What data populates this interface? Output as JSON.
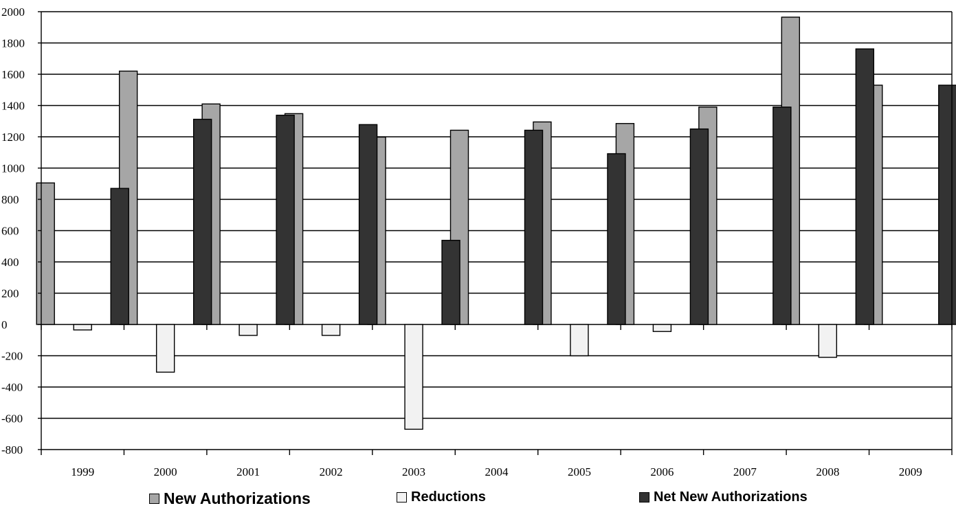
{
  "chart_data": {
    "type": "bar",
    "categories": [
      "1999",
      "2000",
      "2001",
      "2002",
      "2003",
      "2004",
      "2005",
      "2006",
      "2007",
      "2008",
      "2009"
    ],
    "series": [
      {
        "name": "New Authorizations",
        "color": "#a6a6a6",
        "values": [
          905,
          1620,
          1410,
          1348,
          1198,
          1242,
          1295,
          1285,
          1390,
          1965,
          1530
        ]
      },
      {
        "name": "Reductions",
        "color": "#f2f2f2",
        "values": [
          -35,
          -305,
          -70,
          -70,
          -670,
          0,
          -200,
          -45,
          0,
          -210,
          0
        ]
      },
      {
        "name": "Net New Authorizations",
        "color": "#333333",
        "values": [
          870,
          1312,
          1338,
          1278,
          538,
          1242,
          1092,
          1250,
          1390,
          1762,
          1530
        ]
      }
    ],
    "ylim": [
      -800,
      2000
    ],
    "yticks": [
      "-800",
      "-600",
      "-400",
      "-200",
      "0",
      "200",
      "400",
      "600",
      "800",
      "1000",
      "1200",
      "1400",
      "1600",
      "1800",
      "2000"
    ],
    "grid": true,
    "legend_position": "bottom"
  }
}
